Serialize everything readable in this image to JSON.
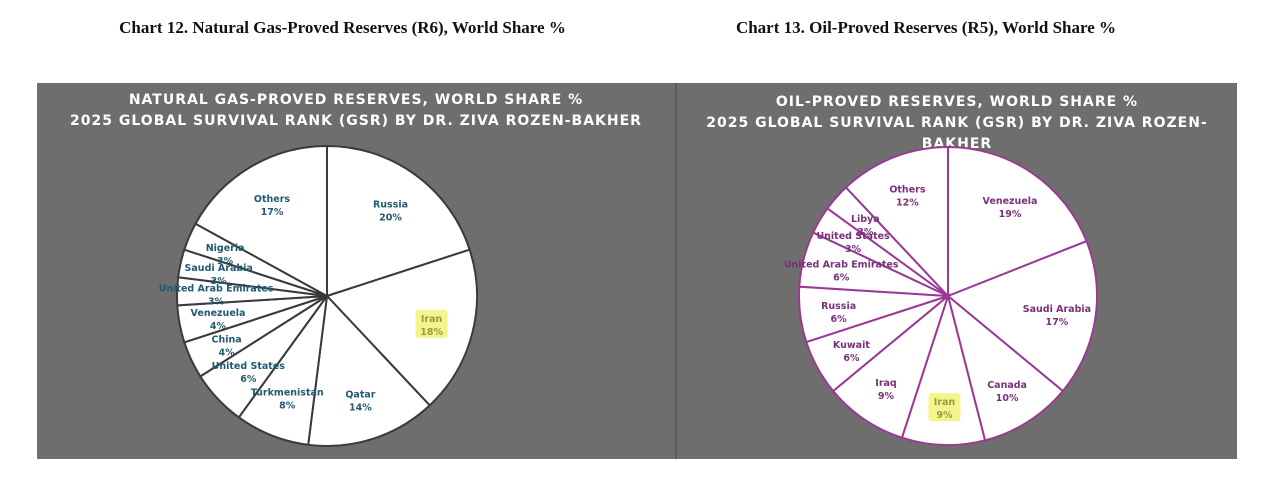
{
  "captions": {
    "left": "Chart 12. Natural Gas-Proved Reserves (R6), World Share %",
    "right": "Chart 13. Oil-Proved Reserves (R5), World Share %"
  },
  "colors": {
    "panel_bg": "#6e6e6e",
    "gas_stroke": "#3a3a3a",
    "gas_label": "#1f5a73",
    "oil_stroke": "#9a3a95",
    "oil_label": "#7a2f7a",
    "highlight": "#f4f48a",
    "highlight_text": "#9a9a40"
  },
  "chart_data": [
    {
      "type": "pie",
      "title": "NATURAL GAS-PROVED RESERVES, WORLD SHARE %",
      "subtitle": "2025 GLOBAL SURVIVAL RANK (GSR) BY DR. ZIVA ROZEN-BAKHER",
      "slices": [
        {
          "label": "Russia",
          "value": 20,
          "value_label": "20%",
          "highlight": false
        },
        {
          "label": "Iran",
          "value": 18,
          "value_label": "18%",
          "highlight": true
        },
        {
          "label": "Qatar",
          "value": 14,
          "value_label": "14%",
          "highlight": false
        },
        {
          "label": "Turkmenistan",
          "value": 8,
          "value_label": "8%",
          "highlight": false
        },
        {
          "label": "United States",
          "value": 6,
          "value_label": "6%",
          "highlight": false
        },
        {
          "label": "China",
          "value": 4,
          "value_label": "4%",
          "highlight": false
        },
        {
          "label": "Venezuela",
          "value": 4,
          "value_label": "4%",
          "highlight": false
        },
        {
          "label": "United Arab Emirates",
          "value": 3,
          "value_label": "3%",
          "highlight": false
        },
        {
          "label": "Saudi Arabia",
          "value": 3,
          "value_label": "3%",
          "highlight": false
        },
        {
          "label": "Nigeria",
          "value": 3,
          "value_label": "3%",
          "highlight": false
        },
        {
          "label": "Others",
          "value": 17,
          "value_label": "17%",
          "highlight": false
        }
      ]
    },
    {
      "type": "pie",
      "title": "OIL-PROVED RESERVES, WORLD SHARE %",
      "subtitle": "2025 GLOBAL SURVIVAL RANK (GSR) BY DR. ZIVA ROZEN-BAKHER",
      "slices": [
        {
          "label": "Venezuela",
          "value": 19,
          "value_label": "19%",
          "highlight": false
        },
        {
          "label": "Saudi Arabia",
          "value": 17,
          "value_label": "17%",
          "highlight": false
        },
        {
          "label": "Canada",
          "value": 10,
          "value_label": "10%",
          "highlight": false
        },
        {
          "label": "Iran",
          "value": 9,
          "value_label": "9%",
          "highlight": true
        },
        {
          "label": "Iraq",
          "value": 9,
          "value_label": "9%",
          "highlight": false
        },
        {
          "label": "Kuwait",
          "value": 6,
          "value_label": "6%",
          "highlight": false
        },
        {
          "label": "Russia",
          "value": 6,
          "value_label": "6%",
          "highlight": false
        },
        {
          "label": "United Arab Emirates",
          "value": 6,
          "value_label": "6%",
          "highlight": false
        },
        {
          "label": "United States",
          "value": 3,
          "value_label": "3%",
          "highlight": false
        },
        {
          "label": "Libya",
          "value": 3,
          "value_label": "3%",
          "highlight": false
        },
        {
          "label": "Others",
          "value": 12,
          "value_label": "12%",
          "highlight": false
        }
      ]
    }
  ]
}
